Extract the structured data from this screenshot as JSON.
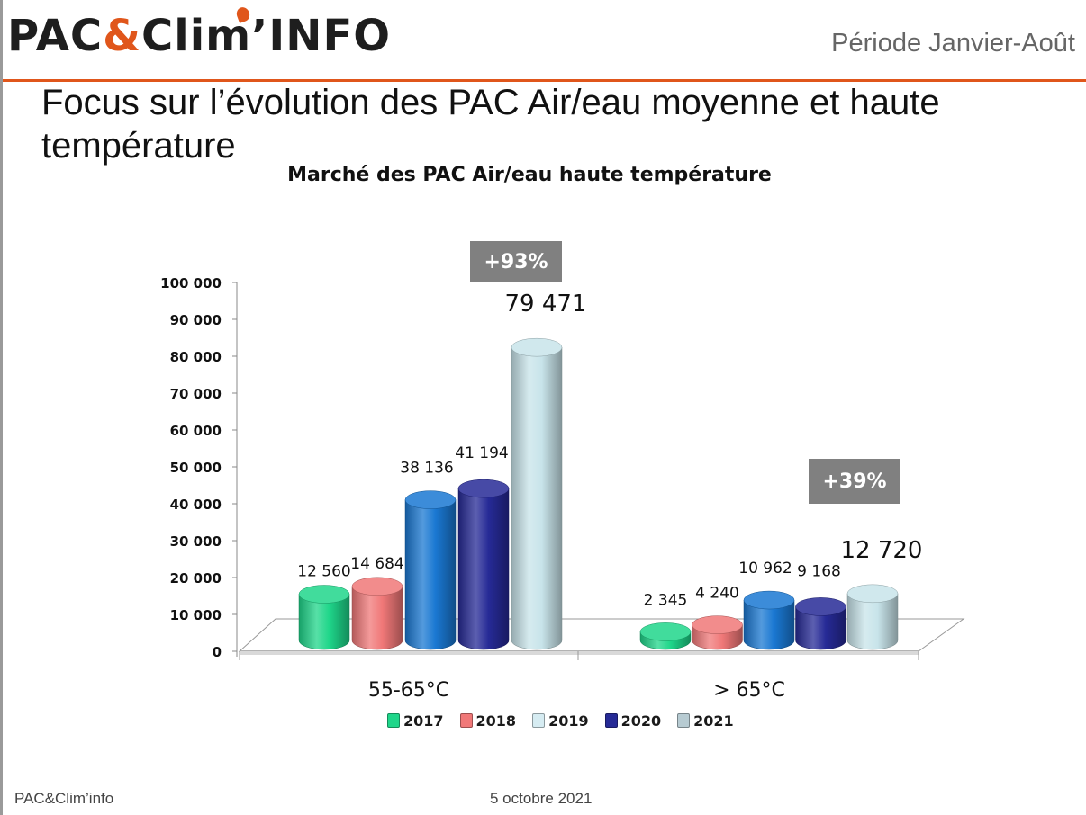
{
  "header": {
    "logo_text_a": "PAC",
    "logo_amp": "&",
    "logo_text_b": "Clim",
    "logo_text_c": "INFO",
    "period": "Période Janvier-Août"
  },
  "slide_title": "Focus sur l’évolution des PAC Air/eau moyenne et haute température",
  "footer": {
    "source": "PAC&Clim’info",
    "date": "5 octobre 2021"
  },
  "colors": {
    "accent": "#e0561b",
    "badge": "#808080"
  },
  "chart_data": {
    "type": "bar",
    "title": "Marché des PAC Air/eau haute température",
    "categories": [
      "55-65°C",
      "> 65°C"
    ],
    "series": [
      {
        "name": "2017",
        "color": "#1fd68a",
        "values": [
          12560,
          2345
        ],
        "labels": [
          "12 560",
          "2 345"
        ]
      },
      {
        "name": "2018",
        "color": "#f07878",
        "values": [
          14684,
          4240
        ],
        "labels": [
          "14 684",
          "4 240"
        ]
      },
      {
        "name": "2019",
        "color": "#1a78d2",
        "values": [
          38136,
          10962
        ],
        "labels": [
          "38 136",
          "10 962"
        ]
      },
      {
        "name": "2020",
        "color": "#262a96",
        "values": [
          41194,
          9168
        ],
        "labels": [
          "41 194",
          "9 168"
        ]
      },
      {
        "name": "2021",
        "color": "#c8e4ea",
        "values": [
          79471,
          12720
        ],
        "labels": [
          "79 471",
          "12 720"
        ]
      }
    ],
    "legend_colors": [
      "#1fd68a",
      "#f07878",
      "#d6ecf2",
      "#262a96",
      "#b7cbd2"
    ],
    "ylim": [
      0,
      100000
    ],
    "yticks": [
      0,
      10000,
      20000,
      30000,
      40000,
      50000,
      60000,
      70000,
      80000,
      90000,
      100000
    ],
    "ytick_labels": [
      "0",
      "10 000",
      "20 000",
      "30 000",
      "40 000",
      "50 000",
      "60 000",
      "70 000",
      "80 000",
      "90 000",
      "100 000"
    ],
    "annotations": [
      "+93%",
      "+39%"
    ],
    "legend_position": "bottom"
  }
}
